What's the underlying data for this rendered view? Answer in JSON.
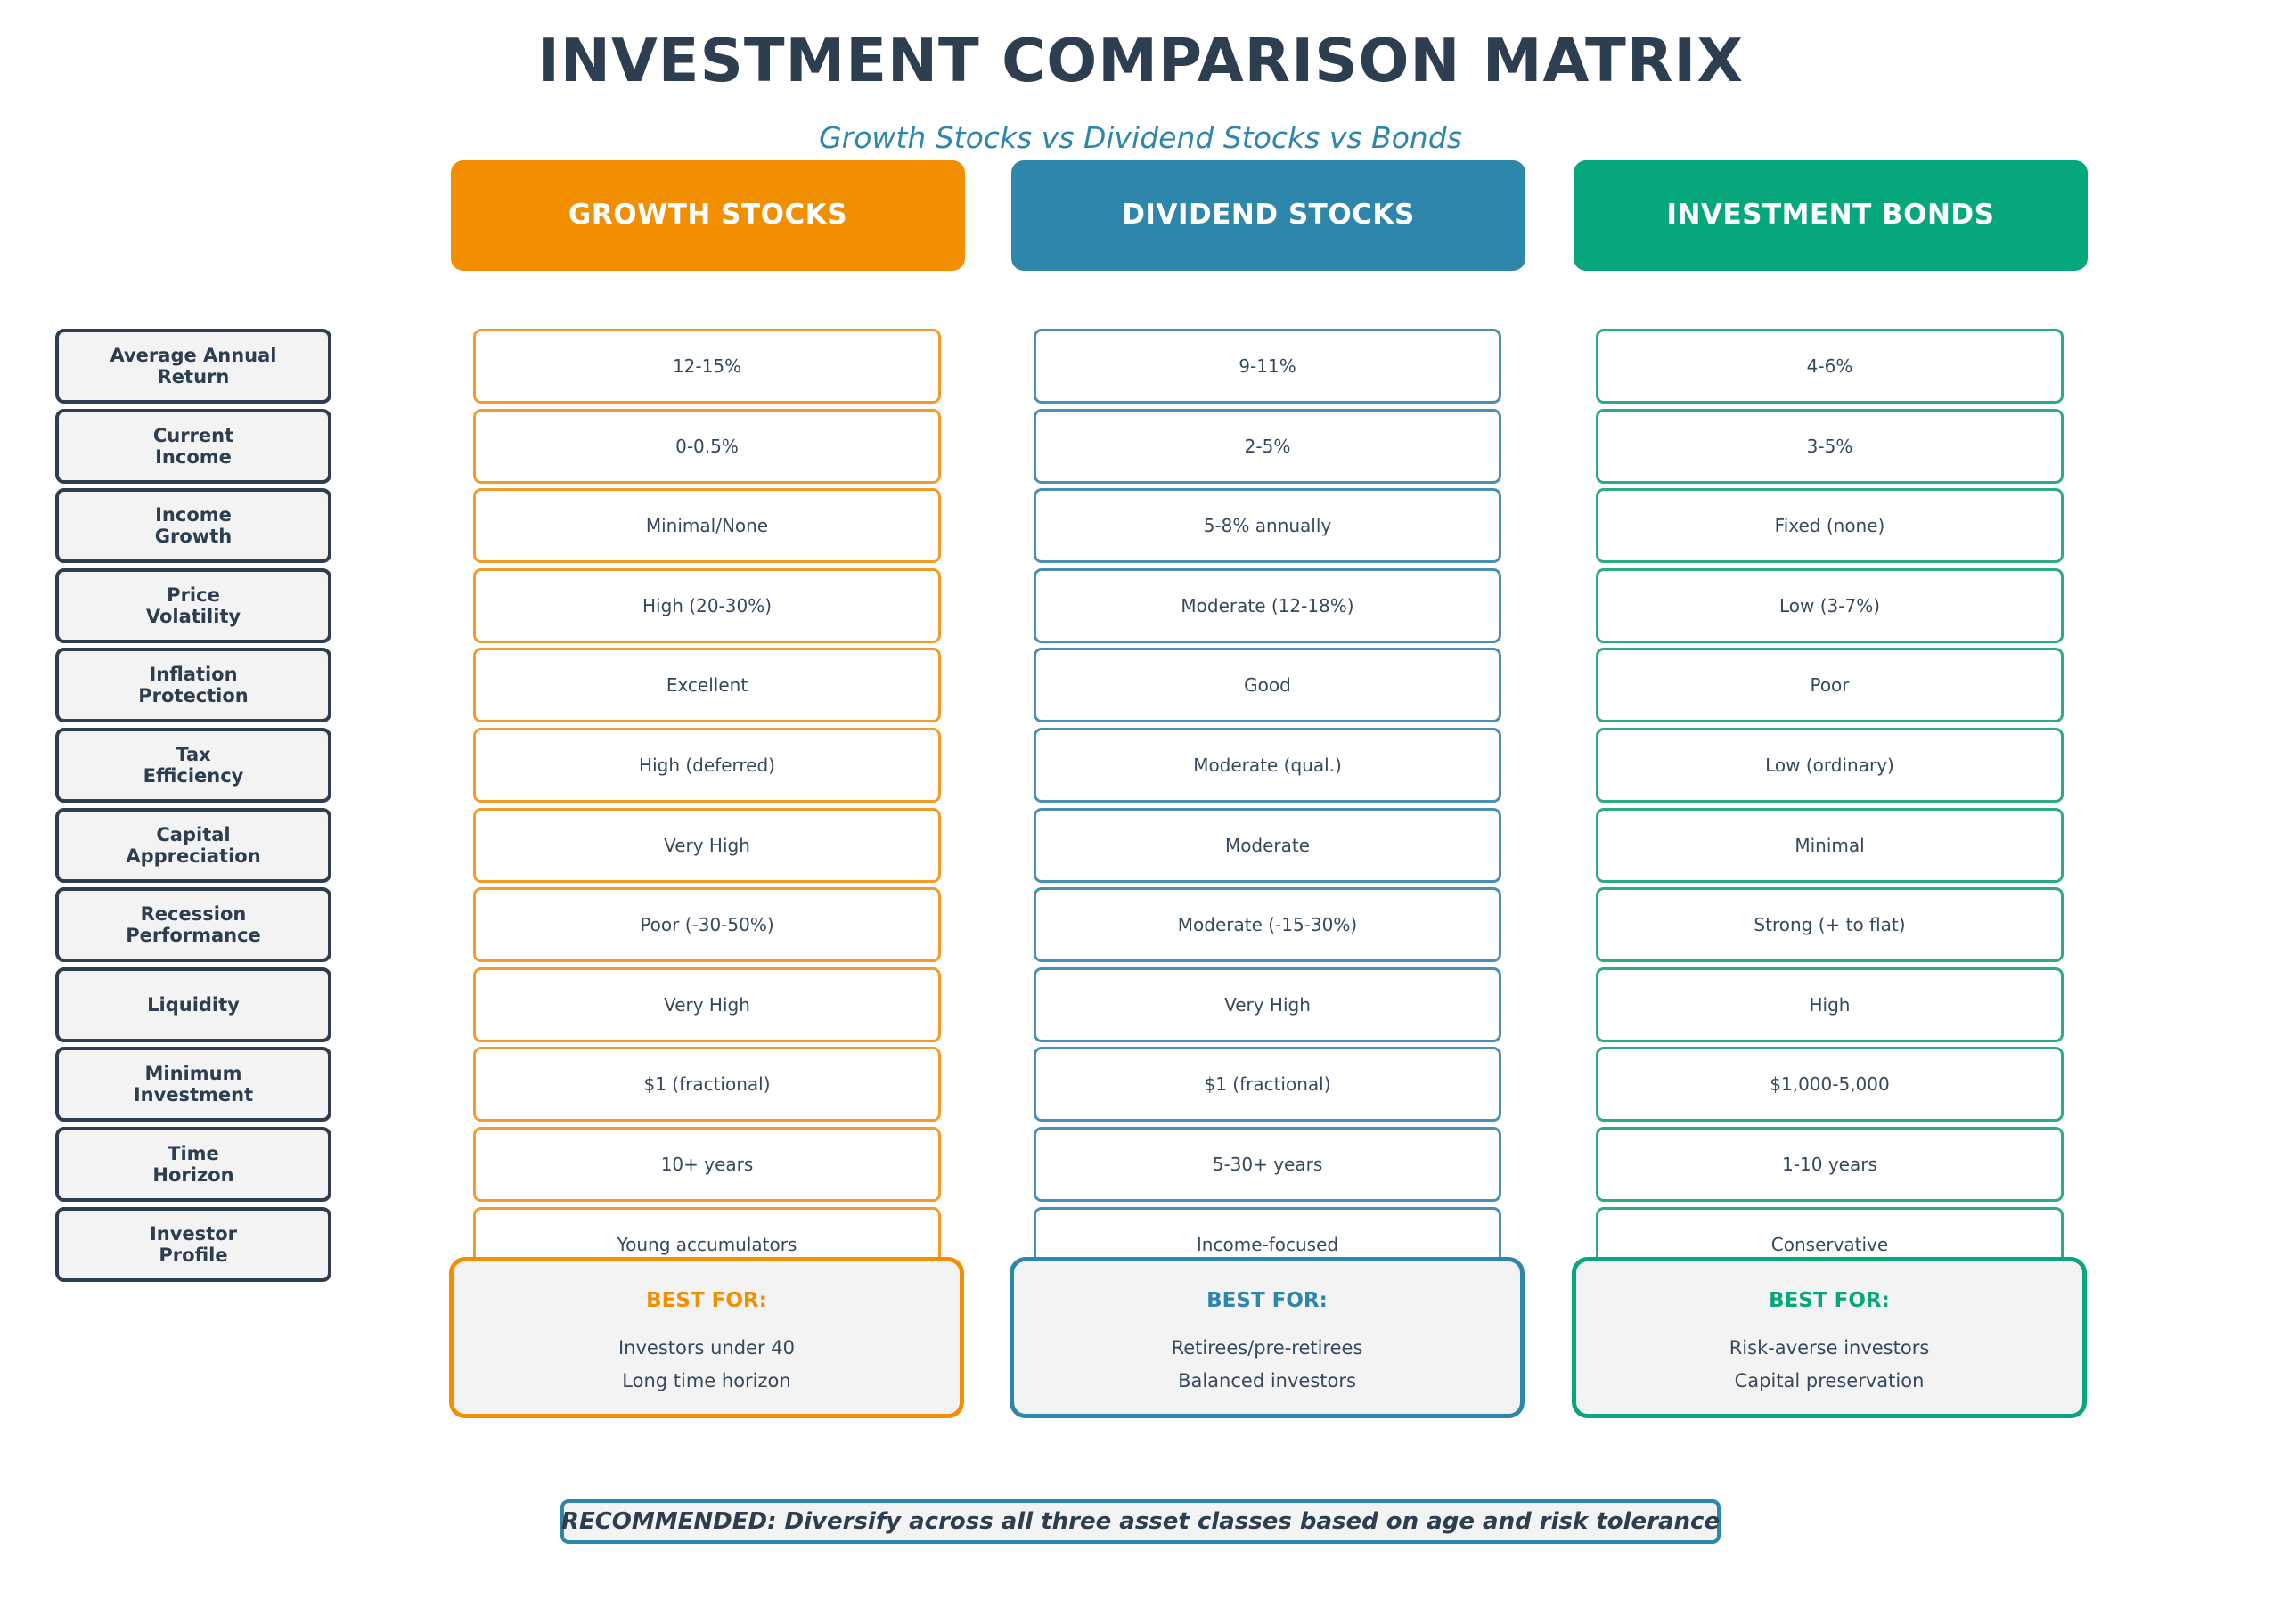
{
  "title": "INVESTMENT COMPARISON MATRIX",
  "subtitle": "Growth Stocks vs Dividend Stocks vs Bonds",
  "colors": {
    "text_dark": "#2c3e50",
    "growth": "#f18f01",
    "dividend": "#2e86ab",
    "bonds": "#06a77d"
  },
  "columns": [
    {
      "key": "growth",
      "label": "GROWTH STOCKS",
      "color": "#f18f01",
      "cell_border": "#f39c2a"
    },
    {
      "key": "dividend",
      "label": "DIVIDEND STOCKS",
      "color": "#2e86ab",
      "cell_border": "#4a90b5"
    },
    {
      "key": "bonds",
      "label": "INVESTMENT BONDS",
      "color": "#06a77d",
      "cell_border": "#2aaa88"
    }
  ],
  "rows": [
    {
      "label": "Average Annual\nReturn",
      "values": [
        "12-15%",
        "9-11%",
        "4-6%"
      ]
    },
    {
      "label": "Current\nIncome",
      "values": [
        "0-0.5%",
        "2-5%",
        "3-5%"
      ]
    },
    {
      "label": "Income\nGrowth",
      "values": [
        "Minimal/None",
        "5-8% annually",
        "Fixed (none)"
      ]
    },
    {
      "label": "Price\nVolatility",
      "values": [
        "High (20-30%)",
        "Moderate (12-18%)",
        "Low (3-7%)"
      ]
    },
    {
      "label": "Inflation\nProtection",
      "values": [
        "Excellent",
        "Good",
        "Poor"
      ]
    },
    {
      "label": "Tax\nEfficiency",
      "values": [
        "High (deferred)",
        "Moderate (qual.)",
        "Low (ordinary)"
      ]
    },
    {
      "label": "Capital\nAppreciation",
      "values": [
        "Very High",
        "Moderate",
        "Minimal"
      ]
    },
    {
      "label": "Recession\nPerformance",
      "values": [
        "Poor (-30-50%)",
        "Moderate (-15-30%)",
        "Strong (+ to flat)"
      ]
    },
    {
      "label": "Liquidity",
      "values": [
        "Very High",
        "Very High",
        "High"
      ]
    },
    {
      "label": "Minimum\nInvestment",
      "values": [
        "$1 (fractional)",
        "$1 (fractional)",
        "$1,000-5,000"
      ]
    },
    {
      "label": "Time\nHorizon",
      "values": [
        "10+ years",
        "5-30+ years",
        "1-10 years"
      ]
    },
    {
      "label": "Investor\nProfile",
      "values": [
        "Young accumulators",
        "Income-focused",
        "Conservative"
      ]
    }
  ],
  "best_for": [
    {
      "title": "BEST FOR:",
      "lines": [
        "Investors under 40",
        "Long time horizon"
      ]
    },
    {
      "title": "BEST FOR:",
      "lines": [
        "Retirees/pre-retirees",
        "Balanced investors"
      ]
    },
    {
      "title": "BEST FOR:",
      "lines": [
        "Risk-averse investors",
        "Capital preservation"
      ]
    }
  ],
  "recommendation": "RECOMMENDED: Diversify across all three asset classes based on age and risk tolerance"
}
